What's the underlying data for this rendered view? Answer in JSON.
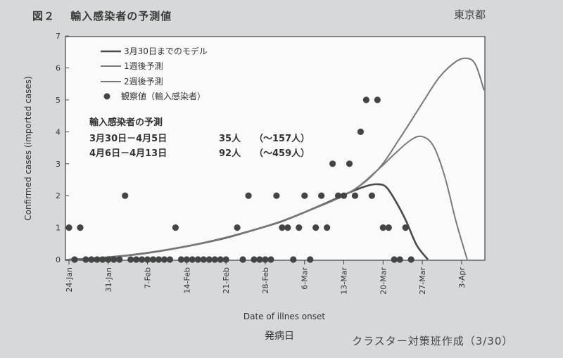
{
  "header": {
    "figure_title": "図２　 輸入感染者の予測値",
    "organization": "東京都"
  },
  "footer": {
    "credit": "クラスター対策班作成（3/30）"
  },
  "chart_data": {
    "type": "line",
    "xlabel": "Date of illnes onset",
    "xlabel_jp": "発病日",
    "ylabel": "Confirmed cases (imported cases)",
    "ylim": [
      0,
      7
    ],
    "yticks": [
      "0",
      "1",
      "2",
      "3",
      "4",
      "5",
      "6",
      "7"
    ],
    "x_tick_labels": [
      "24-Jan",
      "31-Jan",
      "7-Feb",
      "14-Feb",
      "21-Feb",
      "28-Feb",
      "6-Mar",
      "13-Mar",
      "20-Mar",
      "27-Mar",
      "3-Apr"
    ],
    "x_tick_days": [
      0,
      7,
      14,
      21,
      28,
      35,
      42,
      49,
      56,
      63,
      70
    ],
    "legend_position": "top-left",
    "series": [
      {
        "name": "3月30日までのモデル",
        "color": "#4a4a4a",
        "x": [
          0,
          4,
          10,
          16,
          22,
          28,
          34,
          38,
          42,
          46,
          50,
          53,
          55,
          56.5,
          58,
          60,
          62,
          64
        ],
        "y": [
          0,
          0.03,
          0.12,
          0.26,
          0.45,
          0.68,
          0.98,
          1.2,
          1.48,
          1.78,
          2.1,
          2.3,
          2.36,
          2.28,
          1.9,
          1.25,
          0.45,
          0
        ]
      },
      {
        "name": "1週後予測",
        "color": "#7a7a7a",
        "x": [
          0,
          10,
          22,
          34,
          42,
          50,
          55,
          58,
          61,
          63,
          65,
          67,
          69,
          71
        ],
        "y": [
          0,
          0.12,
          0.45,
          0.98,
          1.48,
          2.1,
          2.8,
          3.3,
          3.75,
          3.85,
          3.55,
          2.6,
          1.2,
          0
        ]
      },
      {
        "name": "2週後予測",
        "color": "#777777",
        "x": [
          0,
          10,
          22,
          34,
          42,
          50,
          55,
          59,
          63,
          66,
          69,
          71,
          72.5,
          74
        ],
        "y": [
          0,
          0.12,
          0.45,
          0.98,
          1.48,
          2.1,
          2.8,
          3.8,
          4.9,
          5.7,
          6.2,
          6.3,
          6.1,
          5.3
        ]
      }
    ],
    "observed": {
      "name": "観察値（輸入感染者）",
      "color": "#444444",
      "points": [
        [
          0,
          1
        ],
        [
          1,
          0
        ],
        [
          2,
          1
        ],
        [
          3,
          0
        ],
        [
          4,
          0
        ],
        [
          5,
          0
        ],
        [
          6,
          0
        ],
        [
          7,
          0
        ],
        [
          8,
          0
        ],
        [
          9,
          0
        ],
        [
          10,
          2
        ],
        [
          11,
          0
        ],
        [
          12,
          0
        ],
        [
          13,
          0
        ],
        [
          14,
          0
        ],
        [
          15,
          0
        ],
        [
          16,
          0
        ],
        [
          17,
          0
        ],
        [
          18,
          0
        ],
        [
          19,
          1
        ],
        [
          20,
          0
        ],
        [
          21,
          0
        ],
        [
          22,
          0
        ],
        [
          23,
          0
        ],
        [
          24,
          0
        ],
        [
          25,
          0
        ],
        [
          26,
          0
        ],
        [
          27,
          0
        ],
        [
          28,
          0
        ],
        [
          30,
          1
        ],
        [
          31,
          0
        ],
        [
          32,
          2
        ],
        [
          33,
          0
        ],
        [
          34,
          0
        ],
        [
          35,
          0
        ],
        [
          36,
          0
        ],
        [
          37,
          2
        ],
        [
          38,
          1
        ],
        [
          39,
          1
        ],
        [
          40,
          0
        ],
        [
          41,
          1
        ],
        [
          42,
          2
        ],
        [
          43,
          0
        ],
        [
          44,
          1
        ],
        [
          45,
          2
        ],
        [
          46,
          1
        ],
        [
          47,
          3
        ],
        [
          48,
          2
        ],
        [
          49,
          2
        ],
        [
          50,
          3
        ],
        [
          51,
          2
        ],
        [
          52,
          4
        ],
        [
          53,
          5
        ],
        [
          54,
          2
        ],
        [
          55,
          5
        ],
        [
          56,
          1
        ],
        [
          57,
          1
        ],
        [
          58,
          0
        ],
        [
          59,
          0
        ],
        [
          60,
          1
        ],
        [
          61,
          0
        ]
      ]
    },
    "annotation": {
      "title": "輸入感染者の予測",
      "rows": [
        {
          "period": "3月30日－4月5日",
          "value": "35人",
          "range": "（～157人）"
        },
        {
          "period": "4月6日－4月13日",
          "value": "92人",
          "range": "（～459人）"
        }
      ]
    }
  }
}
